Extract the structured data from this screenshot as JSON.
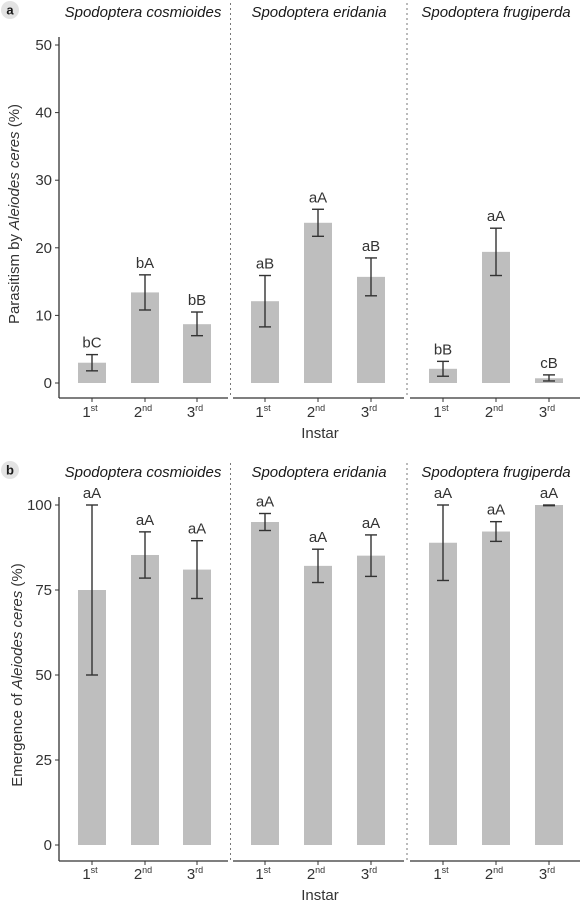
{
  "chart_data": [
    {
      "type": "bar",
      "panel_label": "a",
      "ylabel_prefix": "Parasitism by ",
      "ylabel_italic": "Aleiodes ceres",
      "ylabel_suffix": " (%)",
      "xlabel": "Instar",
      "ylim": [
        0,
        50
      ],
      "yticks": [
        "0",
        "10",
        "20",
        "30",
        "40",
        "50"
      ],
      "categories": [
        {
          "base": "1",
          "sup": "st"
        },
        {
          "base": "2",
          "sup": "nd"
        },
        {
          "base": "3",
          "sup": "rd"
        }
      ],
      "facets": [
        {
          "name": "Spodoptera cosmioides",
          "values": [
            3.0,
            13.4,
            8.7
          ],
          "err_low": [
            1.8,
            10.8,
            7.0
          ],
          "err_high": [
            4.2,
            16.0,
            10.5
          ],
          "labels": [
            "bC",
            "bA",
            "bB"
          ]
        },
        {
          "name": "Spodoptera eridania",
          "values": [
            12.1,
            23.7,
            15.7
          ],
          "err_low": [
            8.3,
            21.7,
            12.9
          ],
          "err_high": [
            15.9,
            25.7,
            18.5
          ],
          "labels": [
            "aB",
            "aA",
            "aB"
          ]
        },
        {
          "name": "Spodoptera frugiperda",
          "values": [
            2.1,
            19.4,
            0.7
          ],
          "err_low": [
            1.0,
            15.9,
            0.3
          ],
          "err_high": [
            3.2,
            22.9,
            1.2
          ],
          "labels": [
            "bB",
            "aA",
            "cB"
          ]
        }
      ]
    },
    {
      "type": "bar",
      "panel_label": "b",
      "ylabel_prefix": "Emergence of ",
      "ylabel_italic": "Aleiodes ceres",
      "ylabel_suffix": " (%)",
      "xlabel": "Instar",
      "ylim": [
        0,
        100
      ],
      "yticks": [
        "0",
        "25",
        "50",
        "75",
        "100"
      ],
      "categories": [
        {
          "base": "1",
          "sup": "st"
        },
        {
          "base": "2",
          "sup": "nd"
        },
        {
          "base": "3",
          "sup": "rd"
        }
      ],
      "facets": [
        {
          "name": "Spodoptera cosmioides",
          "values": [
            75.0,
            85.3,
            81.0
          ],
          "err_low": [
            50.0,
            78.5,
            72.5
          ],
          "err_high": [
            100.0,
            92.1,
            89.5
          ],
          "labels": [
            "aA",
            "aA",
            "aA"
          ]
        },
        {
          "name": "Spodoptera eridania",
          "values": [
            95.0,
            82.1,
            85.1
          ],
          "err_low": [
            92.5,
            77.2,
            79.0
          ],
          "err_high": [
            97.5,
            87.0,
            91.2
          ],
          "labels": [
            "aA",
            "aA",
            "aA"
          ]
        },
        {
          "name": "Spodoptera frugiperda",
          "values": [
            88.9,
            92.2,
            100.0
          ],
          "err_low": [
            77.8,
            89.3,
            99.8
          ],
          "err_high": [
            100.0,
            95.1,
            100.0
          ],
          "labels": [
            "aA",
            "aA",
            "aA"
          ]
        }
      ]
    }
  ]
}
